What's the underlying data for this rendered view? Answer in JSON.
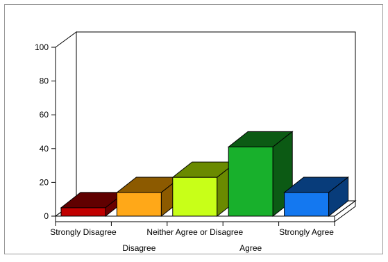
{
  "chart_data": {
    "type": "bar",
    "title": "",
    "xlabel": "",
    "ylabel": "",
    "categories": [
      "Strongly Disagree",
      "Disagree",
      "Neither Agree or Disagree",
      "Agree",
      "Strongly Agree"
    ],
    "values": [
      5,
      14,
      23,
      41,
      14
    ],
    "ylim": [
      0,
      100
    ],
    "yticks": [
      "0",
      "20",
      "40",
      "60",
      "80",
      "100"
    ],
    "grid": false,
    "legend": "none",
    "three_d": true,
    "bar_colors": [
      {
        "front": "#c00000",
        "top": "#600000",
        "side": "#6a0000"
      },
      {
        "front": "#ffa818",
        "top": "#8c5a00",
        "side": "#8c5a00"
      },
      {
        "front": "#c8ff18",
        "top": "#6a8a00",
        "side": "#6a8a00"
      },
      {
        "front": "#18b02c",
        "top": "#0c5a14",
        "side": "#0c5a14"
      },
      {
        "front": "#1478f0",
        "top": "#083c7a",
        "side": "#083c7a"
      }
    ]
  }
}
